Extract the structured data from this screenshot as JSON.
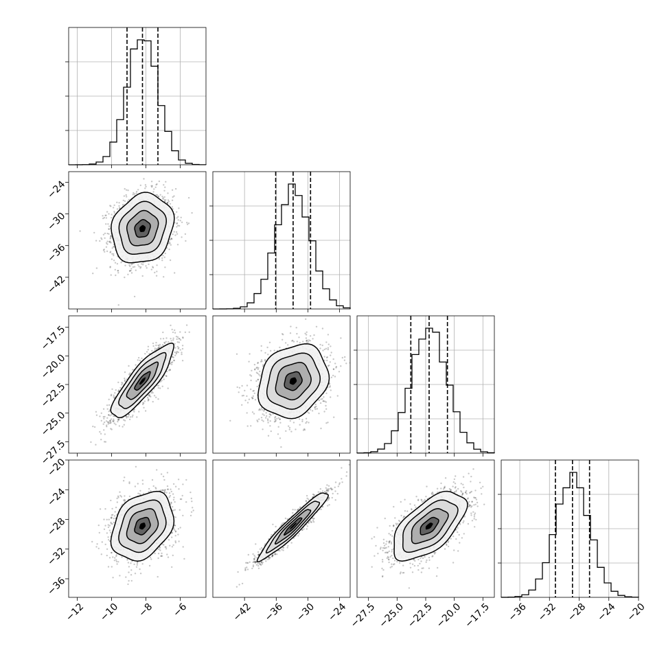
{
  "chart_data": {
    "type": "corner",
    "parameters": [
      {
        "hist_range": [
          -12.5,
          -4.5
        ],
        "ticks": [
          -12,
          -10,
          -8,
          -6
        ],
        "tick_labels": [
          "−12",
          "−10",
          "−8",
          "−6"
        ],
        "mean": -8.2,
        "sigma": 0.9,
        "quantiles": [
          -9.1,
          -8.2,
          -7.3
        ]
      },
      {
        "hist_range": [
          -48,
          -22
        ],
        "ticks": [
          -42,
          -36,
          -30,
          -24
        ],
        "tick_labels": [
          "−42",
          "−36",
          "−30",
          "−24"
        ],
        "mean": -32.8,
        "sigma": 3.3,
        "quantiles": [
          -36.1,
          -32.8,
          -29.5
        ]
      },
      {
        "hist_range": [
          -28.5,
          -16.5
        ],
        "ticks": [
          -27.5,
          -25.0,
          -22.5,
          -20.0,
          -17.5
        ],
        "tick_labels": [
          "−27.5",
          "−25.0",
          "−22.5",
          "−20.0",
          "−17.5"
        ],
        "mean": -22.2,
        "sigma": 1.6,
        "quantiles": [
          -23.8,
          -22.2,
          -20.6
        ]
      },
      {
        "hist_range": [
          -38.5,
          -20
        ],
        "ticks": [
          -36,
          -32,
          -28,
          -24,
          -20
        ],
        "tick_labels": [
          "−36",
          "−32",
          "−28",
          "−24",
          "−20"
        ],
        "mean": -28.9,
        "sigma": 2.3,
        "quantiles": [
          -31.2,
          -28.9,
          -26.6
        ]
      }
    ],
    "correlations": [
      [
        1.0,
        0.15,
        0.85,
        0.3
      ],
      [
        0.15,
        1.0,
        0.2,
        0.95
      ],
      [
        0.85,
        0.2,
        1.0,
        0.6
      ],
      [
        0.3,
        0.95,
        0.6,
        1.0
      ]
    ],
    "contour_levels_sigma": [
      0.5,
      1.0,
      1.5,
      2.0
    ],
    "grid": true,
    "samples_per_panel": 1800
  }
}
